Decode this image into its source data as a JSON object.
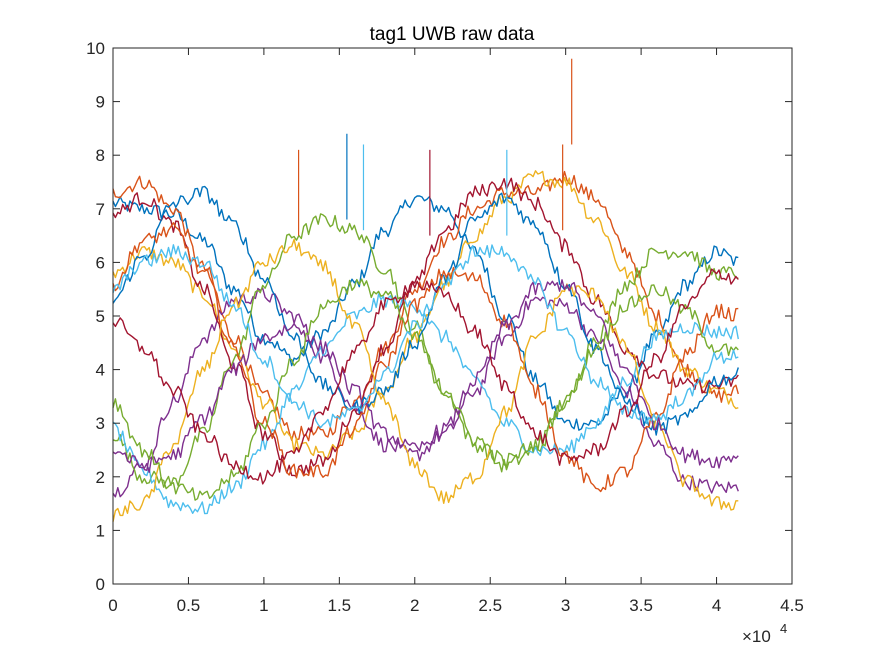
{
  "chart_data": {
    "type": "line",
    "title": "tag1 UWB raw data",
    "xlabel": "",
    "ylabel": "",
    "xlim": [
      0,
      45000
    ],
    "ylim": [
      0,
      10
    ],
    "x_ticks": [
      "0",
      "0.5",
      "1",
      "1.5",
      "2",
      "2.5",
      "3",
      "3.5",
      "4",
      "4.5"
    ],
    "y_ticks": [
      "0",
      "1",
      "2",
      "3",
      "4",
      "5",
      "6",
      "7",
      "8",
      "9",
      "10"
    ],
    "x_exponent_base": "×10",
    "x_exponent_power": "4",
    "grid": false,
    "legend": "none",
    "x": [
      0,
      2000,
      4000,
      6000,
      8000,
      10000,
      12000,
      14000,
      16000,
      18000,
      20000,
      22000,
      24000,
      26000,
      28000,
      30000,
      32000,
      34000,
      36000,
      38000,
      40000,
      41500
    ],
    "series": [
      {
        "color": "#0072BD",
        "values": [
          7.1,
          7.0,
          6.9,
          6.4,
          5.5,
          4.6,
          4.2,
          4.7,
          5.6,
          6.6,
          7.2,
          7.0,
          6.2,
          5.0,
          3.8,
          3.0,
          3.0,
          3.6,
          4.6,
          5.6,
          6.2,
          6.0
        ]
      },
      {
        "color": "#D95319",
        "values": [
          7.3,
          7.5,
          7.0,
          5.9,
          4.6,
          3.5,
          2.8,
          2.8,
          3.4,
          4.4,
          5.5,
          6.4,
          7.0,
          7.3,
          7.3,
          7.6,
          7.2,
          6.2,
          5.0,
          4.0,
          3.5,
          3.6
        ]
      },
      {
        "color": "#EDB120",
        "values": [
          5.8,
          6.2,
          6.0,
          5.4,
          4.4,
          3.4,
          2.6,
          2.4,
          2.8,
          3.6,
          4.6,
          5.6,
          6.5,
          7.2,
          7.6,
          7.5,
          6.8,
          5.8,
          4.8,
          4.0,
          3.6,
          3.4
        ]
      },
      {
        "color": "#7E2F8E",
        "values": [
          1.7,
          2.2,
          3.4,
          4.6,
          5.3,
          5.4,
          5.0,
          4.2,
          3.3,
          2.6,
          2.4,
          2.8,
          3.6,
          4.6,
          5.3,
          5.2,
          4.6,
          3.6,
          2.6,
          1.9,
          1.8,
          1.8
        ]
      },
      {
        "color": "#77AC30",
        "values": [
          2.8,
          2.0,
          1.9,
          2.8,
          4.2,
          5.6,
          6.5,
          6.8,
          6.6,
          5.9,
          4.8,
          3.6,
          2.6,
          2.2,
          2.5,
          3.4,
          4.6,
          5.6,
          6.2,
          6.2,
          5.8,
          5.8
        ]
      },
      {
        "color": "#4DBEEE",
        "values": [
          2.9,
          2.1,
          1.5,
          1.4,
          1.8,
          2.6,
          3.6,
          4.4,
          5.0,
          5.3,
          5.2,
          4.6,
          3.8,
          3.0,
          2.5,
          2.5,
          3.0,
          3.8,
          4.6,
          4.8,
          4.7,
          4.7
        ]
      },
      {
        "color": "#A2142F",
        "values": [
          6.9,
          7.2,
          6.7,
          5.5,
          4.1,
          2.8,
          2.1,
          2.3,
          3.2,
          4.4,
          5.6,
          6.6,
          7.3,
          7.5,
          7.1,
          6.3,
          5.3,
          4.4,
          3.9,
          3.7,
          3.7,
          3.8
        ]
      },
      {
        "color": "#0072BD",
        "values": [
          5.3,
          6.1,
          7.1,
          7.3,
          6.7,
          5.7,
          4.6,
          3.7,
          3.3,
          3.6,
          4.5,
          5.7,
          6.8,
          7.2,
          6.7,
          5.6,
          4.4,
          3.4,
          2.9,
          3.1,
          3.8,
          3.9
        ]
      },
      {
        "color": "#D95319",
        "values": [
          5.6,
          6.4,
          6.6,
          5.8,
          4.4,
          3.0,
          2.1,
          2.1,
          2.9,
          4.1,
          5.2,
          5.8,
          5.7,
          4.9,
          3.6,
          2.4,
          1.8,
          2.1,
          3.1,
          4.3,
          5.1,
          5.0
        ]
      },
      {
        "color": "#EDB120",
        "values": [
          1.3,
          1.5,
          2.6,
          4.0,
          5.2,
          6.0,
          6.3,
          5.9,
          4.8,
          3.4,
          2.2,
          1.6,
          2.0,
          3.2,
          4.6,
          5.5,
          5.4,
          4.4,
          3.0,
          1.9,
          1.5,
          1.5
        ]
      },
      {
        "color": "#7E2F8E",
        "values": [
          2.5,
          2.2,
          2.4,
          3.1,
          4.0,
          4.6,
          4.8,
          4.4,
          3.6,
          2.8,
          2.5,
          2.9,
          3.8,
          4.8,
          5.5,
          5.6,
          5.0,
          4.0,
          3.0,
          2.4,
          2.3,
          2.4
        ]
      },
      {
        "color": "#77AC30",
        "values": [
          3.4,
          2.5,
          1.8,
          1.6,
          2.0,
          3.0,
          4.2,
          5.2,
          5.6,
          5.4,
          4.6,
          3.6,
          2.7,
          2.3,
          2.6,
          3.4,
          4.4,
          5.2,
          5.5,
          5.1,
          4.4,
          4.3
        ]
      },
      {
        "color": "#4DBEEE",
        "values": [
          5.5,
          6.0,
          6.2,
          6.0,
          5.2,
          4.2,
          3.4,
          3.0,
          3.2,
          3.9,
          4.8,
          5.6,
          6.2,
          6.2,
          5.6,
          4.7,
          3.8,
          3.2,
          3.1,
          3.5,
          4.2,
          4.3
        ]
      },
      {
        "color": "#A2142F",
        "values": [
          4.9,
          4.4,
          3.6,
          2.8,
          2.2,
          2.0,
          2.4,
          3.3,
          4.3,
          5.2,
          5.6,
          5.4,
          4.7,
          3.7,
          2.8,
          2.3,
          2.5,
          3.2,
          4.2,
          5.2,
          5.8,
          5.7
        ]
      }
    ],
    "spikes": [
      {
        "x": 12300,
        "y": 8.1,
        "color": "#D95319"
      },
      {
        "x": 15500,
        "y": 8.4,
        "color": "#0072BD"
      },
      {
        "x": 16600,
        "y": 8.2,
        "color": "#4DBEEE"
      },
      {
        "x": 21000,
        "y": 8.1,
        "color": "#A2142F"
      },
      {
        "x": 26100,
        "y": 8.1,
        "color": "#4DBEEE"
      },
      {
        "x": 30400,
        "y": 9.8,
        "color": "#D95319"
      },
      {
        "x": 29800,
        "y": 8.2,
        "color": "#D95319"
      }
    ]
  }
}
